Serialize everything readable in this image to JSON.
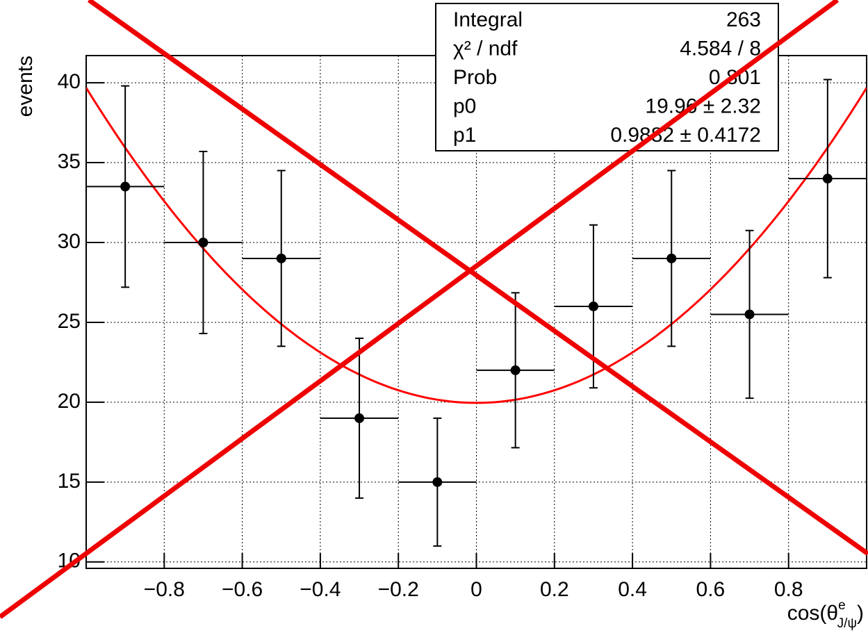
{
  "chart_data": {
    "type": "errorbar",
    "xlabel": {
      "base": "cos(θ",
      "sup": "e",
      "sub": "J/ψ",
      "close": ")"
    },
    "ylabel": "events",
    "x": [
      -0.9,
      -0.7,
      -0.5,
      -0.3,
      -0.1,
      0.1,
      0.3,
      0.5,
      0.7,
      0.9
    ],
    "xerr": [
      0.1,
      0.1,
      0.1,
      0.1,
      0.1,
      0.1,
      0.1,
      0.1,
      0.1,
      0.1
    ],
    "values": [
      33.5,
      30,
      29,
      19,
      15,
      22,
      26,
      29,
      25.5,
      34
    ],
    "yerr": [
      6.3,
      5.7,
      5.5,
      5,
      4,
      4.85,
      5.1,
      5.5,
      5.25,
      6.2
    ],
    "color": "#000000",
    "fit": {
      "p0": 19.96,
      "p1": 0.9882,
      "color": "#ff0000"
    },
    "xlim": [
      -1,
      1
    ],
    "ylim": [
      9.6,
      41.7
    ],
    "xticks": [
      {
        "value": -0.8,
        "label": "−0.8"
      },
      {
        "value": -0.6,
        "label": "−0.6"
      },
      {
        "value": -0.4,
        "label": "−0.4"
      },
      {
        "value": -0.2,
        "label": "−0.2"
      },
      0,
      0.2,
      0.4,
      0.6,
      0.8
    ],
    "yticks": [
      10,
      15,
      20,
      25,
      30,
      35,
      40
    ],
    "grid": true,
    "stats": [
      {
        "label": "Integral",
        "value": "263"
      },
      {
        "label": "χ² / ndf",
        "value": "4.584 / 8"
      },
      {
        "label": "Prob",
        "value": "0.801"
      },
      {
        "label": "p0",
        "value": "19.96 ± 2.32"
      },
      {
        "label": "p1",
        "value": "0.9882 ± 0.4172"
      }
    ]
  }
}
